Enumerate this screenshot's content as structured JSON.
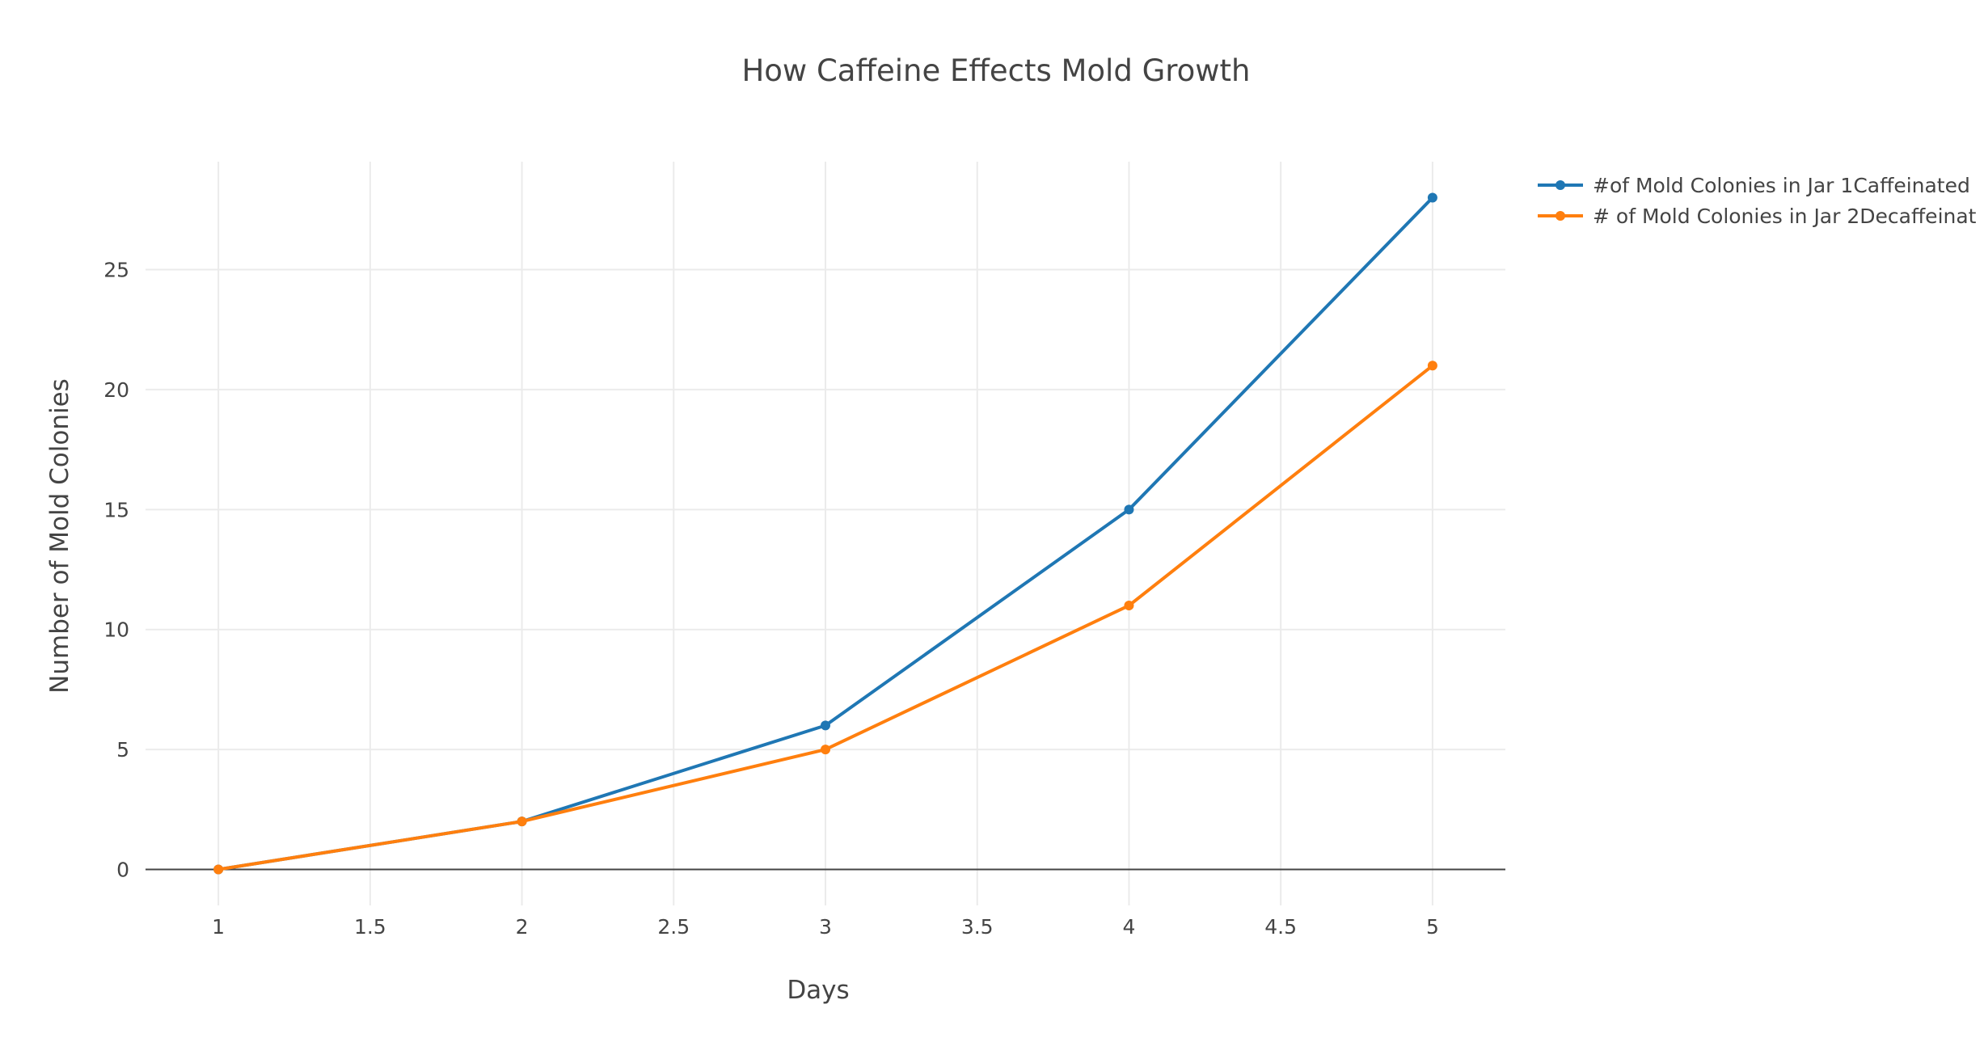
{
  "chart_data": {
    "type": "line",
    "title": "How Caffeine Effects Mold Growth",
    "xlabel": "Days",
    "ylabel": "Number of Mold Colonies",
    "x": [
      1,
      2,
      3,
      4,
      5
    ],
    "xlim": [
      0.76,
      5.24
    ],
    "ylim": [
      -1.5,
      29.5
    ],
    "xticks": [
      1,
      1.5,
      2,
      2.5,
      3,
      3.5,
      4,
      4.5,
      5
    ],
    "xtick_labels": [
      "1",
      "1.5",
      "2",
      "2.5",
      "3",
      "3.5",
      "4",
      "4.5",
      "5"
    ],
    "yticks": [
      0,
      5,
      10,
      15,
      20,
      25
    ],
    "ytick_labels": [
      "0",
      "5",
      "10",
      "15",
      "20",
      "25"
    ],
    "grid": true,
    "legend_position": "top-right",
    "series": [
      {
        "name": "#of Mold Colonies in Jar 1Caffeinated",
        "color": "#1f77b4",
        "values": [
          0,
          2,
          6,
          15,
          28
        ]
      },
      {
        "name": "# of Mold Colonies in Jar 2Decaffeinat",
        "color": "#ff7f0e",
        "values": [
          0,
          2,
          5,
          11,
          21
        ]
      }
    ]
  }
}
